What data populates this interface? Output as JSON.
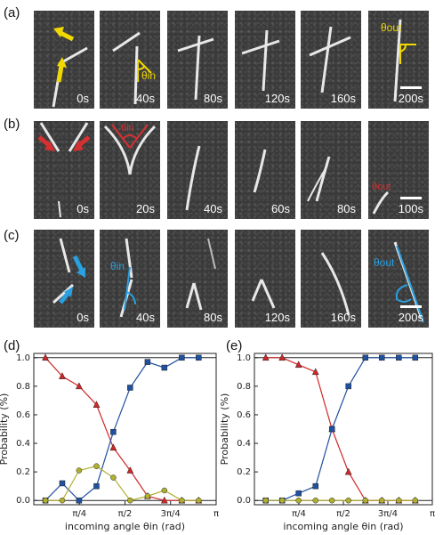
{
  "panels": {
    "a": {
      "label": "(a)",
      "times": [
        "0s",
        "40s",
        "80s",
        "120s",
        "160s",
        "200s"
      ],
      "angle_in": "θin",
      "angle_out": "θout",
      "accent": "#e8d000"
    },
    "b": {
      "label": "(b)",
      "times": [
        "0s",
        "20s",
        "40s",
        "60s",
        "80s",
        "100s"
      ],
      "angle_in": "θin",
      "angle_out": "θout",
      "accent": "#d83030"
    },
    "c": {
      "label": "(c)",
      "times": [
        "0s",
        "40s",
        "80s",
        "120s",
        "160s",
        "200s"
      ],
      "angle_in": "θin",
      "angle_out": "θout",
      "accent": "#2aa0e0"
    }
  },
  "plot_labels": {
    "d": "(d)",
    "e": "(e)"
  },
  "chart_data": [
    {
      "type": "line",
      "id": "d",
      "xlabel": "incoming angle θin (rad)",
      "ylabel": "Probability (%)",
      "xlim": [
        0,
        3.1416
      ],
      "ylim": [
        -0.03,
        1.03
      ],
      "xticks": [
        "π/4",
        "π/2",
        "3π/4",
        "π"
      ],
      "yticks": [
        "0.0",
        "0.2",
        "0.4",
        "0.6",
        "0.8",
        "1.0"
      ],
      "series": [
        {
          "color": "#d02828",
          "marker": "triangle",
          "x": [
            0.2,
            0.49,
            0.78,
            1.08,
            1.37,
            1.66,
            1.96,
            2.25,
            2.55,
            2.84
          ],
          "y": [
            1.0,
            0.87,
            0.8,
            0.67,
            0.37,
            0.21,
            0.03,
            0.0,
            0.0,
            0.0
          ]
        },
        {
          "color": "#2050a0",
          "marker": "square",
          "x": [
            0.2,
            0.49,
            0.78,
            1.08,
            1.37,
            1.66,
            1.96,
            2.25,
            2.55,
            2.84
          ],
          "y": [
            0.0,
            0.12,
            0.0,
            0.1,
            0.48,
            0.79,
            0.97,
            0.93,
            1.0,
            1.0
          ]
        },
        {
          "color": "#b0b030",
          "marker": "circle",
          "x": [
            0.2,
            0.49,
            0.78,
            1.08,
            1.37,
            1.66,
            1.96,
            2.25,
            2.55,
            2.84
          ],
          "y": [
            0.0,
            0.0,
            0.21,
            0.24,
            0.16,
            0.0,
            0.03,
            0.07,
            0.0,
            0.0
          ]
        }
      ]
    },
    {
      "type": "line",
      "id": "e",
      "xlabel": "incoming angle θin (rad)",
      "ylabel": "Probability (%)",
      "xlim": [
        0,
        3.1416
      ],
      "ylim": [
        -0.03,
        1.03
      ],
      "xticks": [
        "π/4",
        "π/2",
        "3π/4",
        "π"
      ],
      "yticks": [
        "0.0",
        "0.2",
        "0.4",
        "0.6",
        "0.8",
        "1.0"
      ],
      "series": [
        {
          "color": "#d02828",
          "marker": "triangle",
          "x": [
            0.2,
            0.49,
            0.78,
            1.08,
            1.37,
            1.66,
            1.96,
            2.25,
            2.55,
            2.84
          ],
          "y": [
            1.0,
            1.0,
            0.95,
            0.9,
            0.5,
            0.2,
            0.0,
            0.0,
            0.0,
            0.0
          ]
        },
        {
          "color": "#2050a0",
          "marker": "square",
          "x": [
            0.2,
            0.49,
            0.78,
            1.08,
            1.37,
            1.66,
            1.96,
            2.25,
            2.55,
            2.84
          ],
          "y": [
            0.0,
            0.0,
            0.05,
            0.1,
            0.5,
            0.8,
            1.0,
            1.0,
            1.0,
            1.0
          ]
        },
        {
          "color": "#b0b030",
          "marker": "circle",
          "x": [
            0.2,
            0.49,
            0.78,
            1.08,
            1.37,
            1.66,
            1.96,
            2.25,
            2.55,
            2.84
          ],
          "y": [
            0.0,
            0.0,
            0.0,
            0.0,
            0.0,
            0.0,
            0.0,
            0.0,
            0.0,
            0.0
          ]
        }
      ]
    }
  ]
}
